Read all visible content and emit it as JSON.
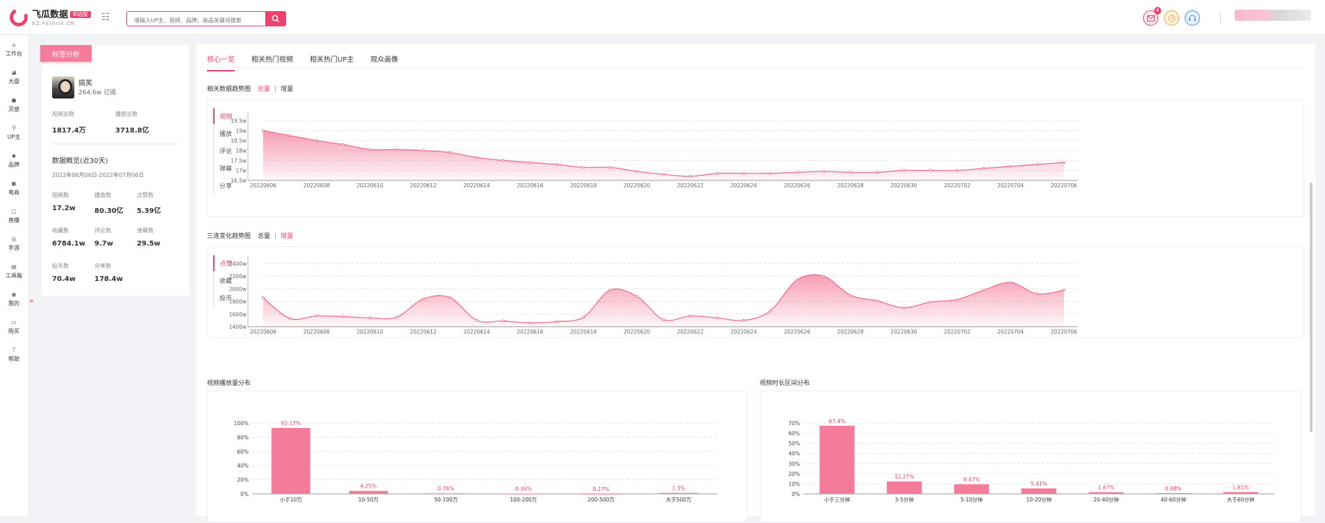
{
  "app": {
    "title": "飞瓜数据",
    "badge": "B站版",
    "subtitle": "BZ.FEIGUA.CN"
  },
  "search": {
    "placeholder": "请输入UP主、视频、品牌、商品关键词搜索"
  },
  "top": {
    "message_count": "4"
  },
  "nav": [
    {
      "label": "工作台",
      "icon": "home-icon",
      "glyph": "⌂"
    },
    {
      "label": "大盘",
      "icon": "pie-icon",
      "glyph": "◕"
    },
    {
      "label": "灵感",
      "icon": "bulb-icon",
      "glyph": "●"
    },
    {
      "label": "UP主",
      "icon": "search-icon",
      "glyph": "⚲"
    },
    {
      "label": "品牌",
      "icon": "diamond-icon",
      "glyph": "◆"
    },
    {
      "label": "电商",
      "icon": "cart-icon",
      "glyph": "▣"
    },
    {
      "label": "直播",
      "icon": "tv-icon",
      "glyph": "▢"
    },
    {
      "label": "手游",
      "icon": "gamepad-icon",
      "glyph": "◎"
    },
    {
      "label": "工具箱",
      "icon": "toolbox-icon",
      "glyph": "▤"
    },
    {
      "label": "我的",
      "icon": "user-icon",
      "glyph": "◉"
    },
    {
      "label": "购买",
      "icon": "card-icon",
      "glyph": "▭"
    },
    {
      "label": "帮助",
      "icon": "help-icon",
      "glyph": "?"
    }
  ],
  "profile": {
    "tab": "标签分析",
    "name": "搞笑",
    "subscribers": "264.6w 订阅",
    "video_total_label": "视频总数",
    "video_total": "1817.4万",
    "play_total_label": "播放总数",
    "play_total": "3718.8亿",
    "overview_title": "数据概览(近30天)",
    "date_range": "2022年06月06日-2022年07月06日",
    "stats": [
      {
        "label": "视频数",
        "value": "17.2w"
      },
      {
        "label": "播放数",
        "value": "80.30亿"
      },
      {
        "label": "点赞数",
        "value": "5.39亿"
      },
      {
        "label": "收藏数",
        "value": "6784.1w"
      },
      {
        "label": "评论数",
        "value": "9.7w"
      },
      {
        "label": "弹幕数",
        "value": "29.5w"
      },
      {
        "label": "投币数",
        "value": "70.4w"
      },
      {
        "label": "分享数",
        "value": "178.4w"
      }
    ]
  },
  "tabs": [
    "核心一览",
    "相关热门视频",
    "相关热门UP主",
    "观众画像"
  ],
  "trend1": {
    "title": "相关数据趋势图",
    "total": "总量",
    "incr": "增量",
    "sep": "|",
    "metrics": [
      "视频",
      "播放",
      "评论",
      "弹幕",
      "分享"
    ]
  },
  "trend2": {
    "title": "三连变化趋势图",
    "total": "总量",
    "incr": "增量",
    "sep": "|",
    "metrics": [
      "点赞",
      "收藏",
      "投币"
    ]
  },
  "bar1_title": "视频播放量分布",
  "bar2_title": "视频时长区间分布",
  "colors": {
    "accent": "#f0406e",
    "bar": "#f47c9a"
  },
  "chart_data": [
    {
      "type": "area",
      "title": "相关数据趋势图",
      "series_name": "视频",
      "x": [
        "20220606",
        "20220607",
        "20220608",
        "20220609",
        "20220610",
        "20220611",
        "20220612",
        "20220613",
        "20220614",
        "20220615",
        "20220616",
        "20220617",
        "20220618",
        "20220619",
        "20220620",
        "20220621",
        "20220622",
        "20220623",
        "20220624",
        "20220625",
        "20220626",
        "20220627",
        "20220628",
        "20220629",
        "20220630",
        "20220701",
        "20220702",
        "20220703",
        "20220704",
        "20220705",
        "20220706"
      ],
      "x_tick_labels": [
        "20220606",
        "20220608",
        "20220610",
        "20220612",
        "20220614",
        "20220616",
        "20220618",
        "20220620",
        "20220622",
        "20220624",
        "20220626",
        "20220628",
        "20220630",
        "20220702",
        "20220704",
        "20220706"
      ],
      "values": [
        19.0,
        18.75,
        18.5,
        18.3,
        18.05,
        18.05,
        18.0,
        17.9,
        17.65,
        17.5,
        17.4,
        17.3,
        17.15,
        17.15,
        16.95,
        16.8,
        16.7,
        16.85,
        16.85,
        16.85,
        16.9,
        16.95,
        16.9,
        16.9,
        17.0,
        17.0,
        17.0,
        17.1,
        17.2,
        17.3,
        17.4
      ],
      "ylim": [
        16.5,
        19.5
      ],
      "y_ticks": [
        "16.5w",
        "17w",
        "17.5w",
        "18w",
        "18.5w",
        "19w",
        "19.5w"
      ],
      "y_tick_values": [
        16.5,
        17,
        17.5,
        18,
        18.5,
        19,
        19.5
      ]
    },
    {
      "type": "area",
      "title": "三连变化趋势图",
      "series_name": "点赞",
      "x": [
        "20220606",
        "20220607",
        "20220608",
        "20220609",
        "20220610",
        "20220611",
        "20220612",
        "20220613",
        "20220614",
        "20220615",
        "20220616",
        "20220617",
        "20220618",
        "20220619",
        "20220620",
        "20220621",
        "20220622",
        "20220623",
        "20220624",
        "20220625",
        "20220626",
        "20220627",
        "20220628",
        "20220629",
        "20220630",
        "20220701",
        "20220702",
        "20220703",
        "20220704",
        "20220705",
        "20220706"
      ],
      "x_tick_labels": [
        "20220606",
        "20220608",
        "20220610",
        "20220612",
        "20220614",
        "20220616",
        "20220618",
        "20220620",
        "20220622",
        "20220624",
        "20220626",
        "20220628",
        "20220630",
        "20220702",
        "20220704",
        "20220706"
      ],
      "values": [
        1860,
        1530,
        1570,
        1560,
        1540,
        1550,
        1840,
        1860,
        1500,
        1490,
        1460,
        1480,
        1550,
        1980,
        1880,
        1510,
        1570,
        1540,
        1500,
        1650,
        2140,
        2200,
        1900,
        1810,
        1700,
        1790,
        1830,
        1980,
        2100,
        1920,
        1980
      ],
      "ylim": [
        1400,
        2400
      ],
      "y_ticks": [
        "1400w",
        "1600w",
        "1800w",
        "2000w",
        "2200w",
        "2400w"
      ],
      "y_tick_values": [
        1400,
        1600,
        1800,
        2000,
        2200,
        2400
      ]
    },
    {
      "type": "bar",
      "title": "视频播放量分布",
      "categories": [
        "小于10万",
        "10-50万",
        "50-100万",
        "100-200万",
        "200-500万",
        "大于500万"
      ],
      "values": [
        93.17,
        4.25,
        0.76,
        0.36,
        0.17,
        1.3
      ],
      "labels": [
        "93.17%",
        "4.25%",
        "0.76%",
        "0.36%",
        "0.17%",
        "1.3%"
      ],
      "ylim": [
        0,
        100
      ],
      "y_ticks": [
        "0%",
        "20%",
        "40%",
        "60%",
        "80%",
        "100%"
      ],
      "y_tick_values": [
        0,
        20,
        40,
        60,
        80,
        100
      ]
    },
    {
      "type": "bar",
      "title": "视频时长区间分布",
      "categories": [
        "小于三分钟",
        "3-5分钟",
        "5-10分钟",
        "10-20分钟",
        "20-40分钟",
        "40-60分钟",
        "大于60分钟"
      ],
      "values": [
        67.4,
        12.27,
        9.47,
        5.41,
        1.67,
        0.68,
        1.81
      ],
      "labels": [
        "67.4%",
        "12.27%",
        "9.47%",
        "5.41%",
        "1.67%",
        "0.68%",
        "1.81%"
      ],
      "ylim": [
        0,
        70
      ],
      "y_ticks": [
        "0%",
        "10%",
        "20%",
        "30%",
        "40%",
        "50%",
        "60%",
        "70%"
      ],
      "y_tick_values": [
        0,
        10,
        20,
        30,
        40,
        50,
        60,
        70
      ]
    }
  ]
}
